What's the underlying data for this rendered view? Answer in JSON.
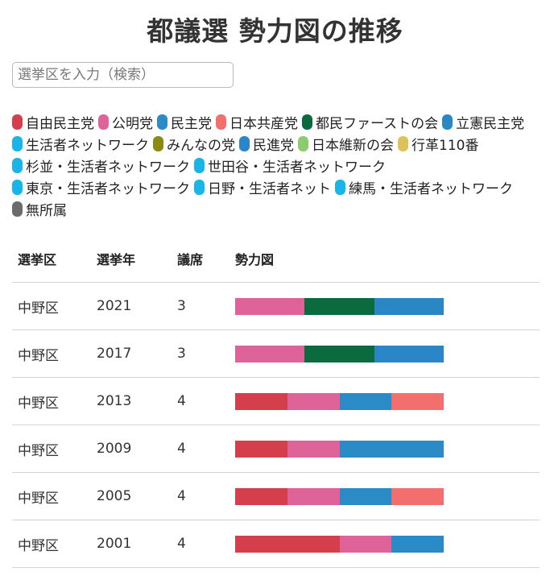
{
  "page": {
    "title": "都議選 勢力図の推移",
    "search_placeholder": "選挙区を入力（検索）"
  },
  "legend": [
    {
      "name": "自由民主党",
      "color": "#d43f4b"
    },
    {
      "name": "公明党",
      "color": "#de6399"
    },
    {
      "name": "民主党",
      "color": "#2b8bc6"
    },
    {
      "name": "日本共産党",
      "color": "#f36f6e"
    },
    {
      "name": "都民ファーストの会",
      "color": "#0b6b3e"
    },
    {
      "name": "立憲民主党",
      "color": "#2b87c4"
    },
    {
      "name": "生活者ネットワーク",
      "color": "#1ab5e8"
    },
    {
      "name": "みんなの党",
      "color": "#8a8a12"
    },
    {
      "name": "民進党",
      "color": "#2b86c8"
    },
    {
      "name": "日本維新の会",
      "color": "#8ccc6e"
    },
    {
      "name": "行革110番",
      "color": "#dcc25a"
    },
    {
      "name": "杉並・生活者ネットワーク",
      "color": "#1ab5e8"
    },
    {
      "name": "世田谷・生活者ネットワーク",
      "color": "#1ab5e8"
    },
    {
      "name": "東京・生活者ネットワーク",
      "color": "#1ab5e8"
    },
    {
      "name": "日野・生活者ネット",
      "color": "#1ab5e8"
    },
    {
      "name": "練馬・生活者ネットワーク",
      "color": "#1ab5e8"
    },
    {
      "name": "無所属",
      "color": "#6b6b6b"
    }
  ],
  "table": {
    "headers": [
      "選挙区",
      "選挙年",
      "議席",
      "勢力図"
    ],
    "rows": [
      {
        "district": "中野区",
        "year": "2021",
        "seats": "3",
        "composition": [
          {
            "party": "公明党",
            "seats": 1,
            "color": "#de6399"
          },
          {
            "party": "都民ファーストの会",
            "seats": 1,
            "color": "#0b6b3e"
          },
          {
            "party": "立憲民主党",
            "seats": 1,
            "color": "#2b87c4"
          }
        ]
      },
      {
        "district": "中野区",
        "year": "2017",
        "seats": "3",
        "composition": [
          {
            "party": "公明党",
            "seats": 1,
            "color": "#de6399"
          },
          {
            "party": "都民ファーストの会",
            "seats": 1,
            "color": "#0b6b3e"
          },
          {
            "party": "民進党",
            "seats": 1,
            "color": "#2b86c8"
          }
        ]
      },
      {
        "district": "中野区",
        "year": "2013",
        "seats": "4",
        "composition": [
          {
            "party": "自由民主党",
            "seats": 1,
            "color": "#d43f4b"
          },
          {
            "party": "公明党",
            "seats": 1,
            "color": "#de6399"
          },
          {
            "party": "民主党",
            "seats": 1,
            "color": "#2b8bc6"
          },
          {
            "party": "日本共産党",
            "seats": 1,
            "color": "#f36f6e"
          }
        ]
      },
      {
        "district": "中野区",
        "year": "2009",
        "seats": "4",
        "composition": [
          {
            "party": "自由民主党",
            "seats": 1,
            "color": "#d43f4b"
          },
          {
            "party": "公明党",
            "seats": 1,
            "color": "#de6399"
          },
          {
            "party": "民主党",
            "seats": 2,
            "color": "#2b8bc6"
          }
        ]
      },
      {
        "district": "中野区",
        "year": "2005",
        "seats": "4",
        "composition": [
          {
            "party": "自由民主党",
            "seats": 1,
            "color": "#d43f4b"
          },
          {
            "party": "公明党",
            "seats": 1,
            "color": "#de6399"
          },
          {
            "party": "民主党",
            "seats": 1,
            "color": "#2b8bc6"
          },
          {
            "party": "日本共産党",
            "seats": 1,
            "color": "#f36f6e"
          }
        ]
      },
      {
        "district": "中野区",
        "year": "2001",
        "seats": "4",
        "composition": [
          {
            "party": "自由民主党",
            "seats": 2,
            "color": "#d43f4b"
          },
          {
            "party": "公明党",
            "seats": 1,
            "color": "#de6399"
          },
          {
            "party": "民主党",
            "seats": 1,
            "color": "#2b8bc6"
          }
        ]
      }
    ]
  }
}
